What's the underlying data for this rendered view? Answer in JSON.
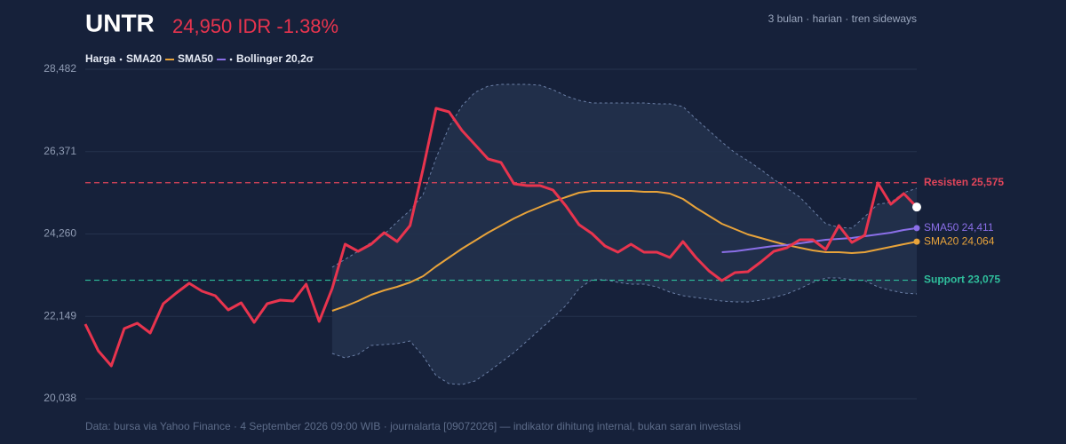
{
  "chart_data": {
    "type": "line",
    "title": "UNTR",
    "price_label": "24,950 IDR -1.38%",
    "subtitle": "3 bulan · harian · tren sideways",
    "source": "Data: bursa via Yahoo Finance · 4 September 2026 09:00 WIB · journalarta [09072026] — indikator dihitung internal, bukan saran investasi",
    "ylim": [
      20038,
      28482
    ],
    "yticks": [
      {
        "value": 20038,
        "label": "20,038"
      },
      {
        "value": 22149,
        "label": "22,149"
      },
      {
        "value": 24260,
        "label": "24,260"
      },
      {
        "value": 26371,
        "label": "26,371"
      },
      {
        "value": 28482,
        "label": "28,482"
      }
    ],
    "grid": true,
    "categories": [
      null,
      null,
      null,
      null,
      null,
      null,
      null,
      null,
      null,
      null,
      null,
      null,
      null,
      null,
      null,
      null,
      null,
      null,
      null,
      null,
      null,
      null,
      null,
      null,
      null,
      null,
      null,
      null,
      null,
      null,
      null,
      null,
      null,
      null,
      null,
      null,
      null,
      null,
      null,
      null,
      null,
      null,
      null,
      null,
      null,
      null,
      null,
      null,
      null,
      null,
      null,
      null,
      null,
      null,
      null,
      null,
      null,
      null,
      null,
      null,
      null,
      null,
      null,
      null,
      null
    ],
    "band": {
      "name": "Bollinger 20,2σ",
      "color": "#6b7fa6",
      "fill": "#22314d",
      "upper": [
        null,
        null,
        null,
        null,
        null,
        null,
        null,
        null,
        null,
        null,
        null,
        null,
        null,
        null,
        null,
        null,
        null,
        null,
        null,
        23407,
        23611,
        23816,
        24044,
        24249,
        24567,
        24863,
        25273,
        26206,
        27003,
        27549,
        27890,
        28050,
        28095,
        28095,
        28095,
        28072,
        27959,
        27799,
        27685,
        27617,
        27617,
        27617,
        27617,
        27617,
        27594,
        27594,
        27526,
        27207,
        26912,
        26616,
        26343,
        26138,
        25910,
        25660,
        25432,
        25205,
        24863,
        24522,
        24431,
        24408,
        24704,
        25022,
        25068,
        25318,
        25432
      ],
      "lower": [
        null,
        null,
        null,
        null,
        null,
        null,
        null,
        null,
        null,
        null,
        null,
        null,
        null,
        null,
        null,
        null,
        null,
        null,
        null,
        21199,
        21085,
        21176,
        21404,
        21426,
        21449,
        21517,
        21131,
        20630,
        20425,
        20402,
        20493,
        20721,
        20971,
        21222,
        21517,
        21813,
        22109,
        22428,
        22860,
        23088,
        23088,
        23020,
        22974,
        22974,
        22906,
        22769,
        22678,
        22633,
        22587,
        22542,
        22519,
        22519,
        22564,
        22633,
        22724,
        22860,
        23020,
        23133,
        23133,
        23088,
        23065,
        22906,
        22815,
        22746,
        22724
      ]
    },
    "series": [
      {
        "name": "Harga",
        "color": "#e8344e",
        "end_dot": "#ffffff",
        "values": [
          21950,
          21267,
          20880,
          21836,
          21973,
          21722,
          22473,
          22746,
          22997,
          22792,
          22678,
          22314,
          22496,
          21995,
          22473,
          22564,
          22542,
          22974,
          22018,
          22860,
          23998,
          23816,
          23998,
          24294,
          24067,
          24476,
          25933,
          27481,
          27390,
          26912,
          26547,
          26183,
          26092,
          25546,
          25500,
          25500,
          25387,
          24977,
          24499,
          24271,
          23953,
          23793,
          23998,
          23793,
          23793,
          23657,
          24067,
          23657,
          23315,
          23065,
          23270,
          23293,
          23543,
          23816,
          23907,
          24112,
          24112,
          23862,
          24476,
          24044,
          24226,
          25569,
          25022,
          25296,
          24950
        ]
      },
      {
        "name": "SMA20",
        "color": "#e8a33a",
        "end_label": "SMA20 24,064",
        "values": [
          null,
          null,
          null,
          null,
          null,
          null,
          null,
          null,
          null,
          null,
          null,
          null,
          null,
          null,
          null,
          null,
          null,
          null,
          null,
          22291,
          22405,
          22542,
          22701,
          22815,
          22906,
          23020,
          23179,
          23429,
          23657,
          23884,
          24089,
          24294,
          24476,
          24658,
          24818,
          24954,
          25091,
          25205,
          25318,
          25364,
          25364,
          25364,
          25364,
          25341,
          25341,
          25296,
          25159,
          24931,
          24727,
          24522,
          24385,
          24249,
          24158,
          24064,
          23976,
          23907,
          23839,
          23793,
          23793,
          23771,
          23793,
          23862,
          23930,
          23998,
          24064
        ]
      },
      {
        "name": "SMA50",
        "color": "#8b6fe8",
        "end_label": "SMA50 24,411",
        "values": [
          null,
          null,
          null,
          null,
          null,
          null,
          null,
          null,
          null,
          null,
          null,
          null,
          null,
          null,
          null,
          null,
          null,
          null,
          null,
          null,
          null,
          null,
          null,
          null,
          null,
          null,
          null,
          null,
          null,
          null,
          null,
          null,
          null,
          null,
          null,
          null,
          null,
          null,
          null,
          null,
          null,
          null,
          null,
          null,
          null,
          null,
          null,
          null,
          null,
          23793,
          23816,
          23862,
          23907,
          23953,
          23976,
          24021,
          24066,
          24112,
          24135,
          24158,
          24203,
          24249,
          24294,
          24362,
          24411
        ]
      }
    ],
    "annotations": [
      {
        "label": "Resisten 25,575",
        "value": 25575,
        "color": "#e0455a"
      },
      {
        "label": "Support 23,075",
        "value": 23075,
        "color": "#2fbf9c"
      }
    ]
  }
}
